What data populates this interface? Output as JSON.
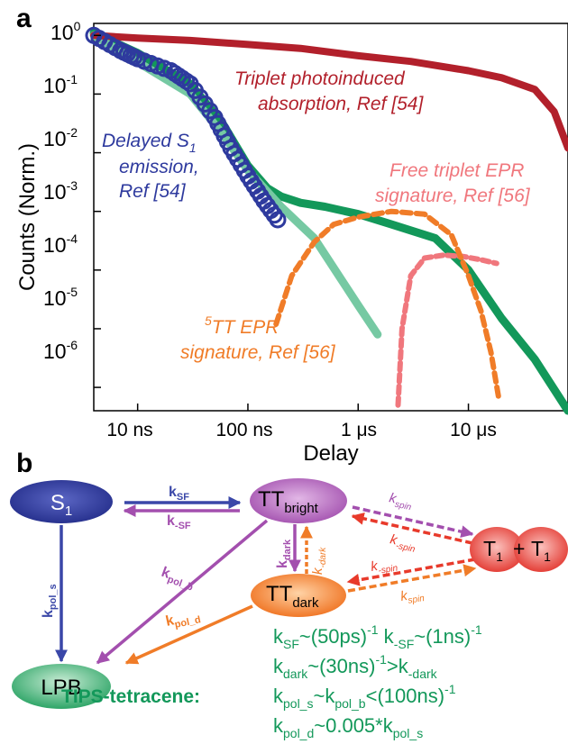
{
  "panel_a": {
    "label": "a",
    "xlabel": "Delay",
    "ylabel": "Counts (Norm.)",
    "x_ticks": [
      "10 ns",
      "100 ns",
      "1 μs",
      "10 μs"
    ],
    "y_ticks": [
      {
        "base": "10",
        "exp": "0"
      },
      {
        "base": "10",
        "exp": "-1"
      },
      {
        "base": "10",
        "exp": "-2"
      },
      {
        "base": "10",
        "exp": "-3"
      },
      {
        "base": "10",
        "exp": "-4"
      },
      {
        "base": "10",
        "exp": "-5"
      },
      {
        "base": "10",
        "exp": "-6"
      }
    ],
    "annotations": {
      "triplet_pia_1": "Triplet photoinduced",
      "triplet_pia_2": "absorption, Ref [54]",
      "delayed_1": "Delayed S",
      "delayed_1_sub": "1",
      "delayed_2": "emission,",
      "delayed_3": "Ref [54]",
      "free_epr_1": "Free triplet EPR",
      "free_epr_2": "signature, Ref [56]",
      "tt5_sup": "5",
      "tt5_1": "TT EPR",
      "tt5_2": "signature, Ref [56]"
    },
    "colors": {
      "triplet": "#b2202b",
      "delayed": "#2e3a9e",
      "green_dark": "#13985a",
      "green_light": "#76c9a3",
      "free_epr": "#f0777d",
      "tt5": "#f07c28"
    }
  },
  "chart_data": {
    "type": "line",
    "xscale": "log",
    "yscale": "log",
    "xlabel": "Delay",
    "ylabel": "Counts (Norm.)",
    "xlim_s": [
      4e-09,
      8e-05
    ],
    "ylim": [
      4e-07,
      1.6
    ],
    "series": [
      {
        "name": "Triplet photoinduced absorption, Ref [54]",
        "x_s": [
          4e-09,
          1e-08,
          3e-08,
          1e-07,
          3e-07,
          1e-06,
          3e-06,
          1e-05,
          2e-05,
          4e-05,
          6e-05,
          8e-05
        ],
        "y": [
          1.0,
          0.9,
          0.82,
          0.7,
          0.6,
          0.45,
          0.36,
          0.25,
          0.19,
          0.12,
          0.05,
          0.012
        ]
      },
      {
        "name": "Delayed S1 emission, Ref [54]",
        "x_s": [
          4e-09,
          7e-09,
          1e-08,
          2e-08,
          3e-08,
          5e-08,
          7e-08,
          1e-07,
          1.4e-07,
          2e-07
        ],
        "y": [
          1.0,
          0.55,
          0.4,
          0.25,
          0.15,
          0.04,
          0.012,
          0.004,
          0.0015,
          0.0006
        ]
      },
      {
        "name": "",
        "x_s": [
          4e-09,
          1e-08,
          3e-08,
          6e-08,
          1e-07,
          1.5e-07,
          2e-07,
          3e-07,
          5e-07,
          1e-06,
          2e-06,
          5e-06,
          1e-05,
          2e-05,
          4e-05,
          8e-05
        ],
        "y": [
          1.1,
          0.5,
          0.15,
          0.03,
          0.006,
          0.0025,
          0.0018,
          0.0014,
          0.0012,
          0.0009,
          0.0006,
          0.00035,
          0.0001,
          1.5e-05,
          3e-06,
          4e-07
        ]
      },
      {
        "name": "",
        "x_s": [
          4e-09,
          1e-08,
          3e-08,
          6e-08,
          1e-07,
          2e-07,
          4e-07,
          7e-07,
          1e-06,
          1.5e-06
        ],
        "y": [
          1.0,
          0.35,
          0.1,
          0.02,
          0.005,
          0.0012,
          0.00035,
          7e-05,
          2.5e-05,
          8e-06
        ]
      },
      {
        "name": "Free triplet EPR signature, Ref [56]",
        "x_s": [
          2.3e-06,
          2.5e-06,
          3e-06,
          4e-06,
          6e-06,
          9e-06,
          1.3e-05,
          1.8e-05
        ],
        "y": [
          5e-07,
          1e-05,
          8e-05,
          0.00016,
          0.00018,
          0.00017,
          0.00015,
          0.00013
        ]
      },
      {
        "name": "5TT EPR signature, Ref [56]",
        "x_s": [
          1.8e-07,
          2.5e-07,
          4e-07,
          6e-07,
          1e-06,
          2e-06,
          4e-06,
          7e-06,
          1e-05,
          1.3e-05,
          1.6e-05,
          1.9e-05
        ],
        "y": [
          1.2e-05,
          8e-05,
          0.0003,
          0.0006,
          0.0008,
          0.001,
          0.0009,
          0.0004,
          8e-05,
          2e-05,
          4e-06,
          6e-07
        ]
      }
    ]
  },
  "panel_b": {
    "label": "b",
    "nodes": {
      "s1": "S",
      "s1_sub": "1",
      "ttb": "TT",
      "ttb_sub": "bright",
      "ttd": "TT",
      "ttd_sub": "dark",
      "lpb": "LPB",
      "t1a": "T",
      "t1a_sub": "1",
      "plus": "+",
      "t1b": "T",
      "t1b_sub": "1"
    },
    "rates": {
      "ksf": "k",
      "ksf_sub": "SF",
      "kmsf": "k",
      "kmsf_sub": "-SF",
      "kpols": "k",
      "kpols_sub": "pol_s",
      "kpolb": "k",
      "kpolb_sub": "pol_b",
      "kdark": "k",
      "kdark_sub": "dark",
      "kmdark": "k",
      "kmdark_sub": "-dark",
      "kpold": "k",
      "kpold_sub": "pol_d",
      "kspin_1": "k",
      "kspin_1_sub": "spin",
      "kmspin_1": "k",
      "kmspin_1_sub": "-spin",
      "kmspin_2": "k",
      "kmspin_2_sub": "-spin",
      "kspin_2": "k",
      "kspin_2_sub": "spin"
    },
    "material": "TIPS-tetracene:",
    "eq1": {
      "a": "k",
      "a_sub": "SF",
      "b": "~(50ps)",
      "b_sup": "-1",
      "c": " k",
      "c_sub": "-SF",
      "d": "~(1ns)",
      "d_sup": "-1"
    },
    "eq2": {
      "a": "k",
      "a_sub": "dark",
      "b": "~(30ns)",
      "b_sup": "-1",
      "c": ">k",
      "c_sub": "-dark"
    },
    "eq3": {
      "a": "k",
      "a_sub": "pol_s",
      "b": "~k",
      "b_sub": "pol_b",
      "c": "<(100ns)",
      "c_sup": "-1"
    },
    "eq4": {
      "a": "k",
      "a_sub": "pol_d",
      "b": "~0.005*k",
      "b_sub": "pol_s"
    },
    "colors": {
      "blue": "#3a47a8",
      "purple": "#a34fae",
      "orange": "#f07c28",
      "red": "#e83a2b",
      "green_text": "#13985a"
    }
  }
}
